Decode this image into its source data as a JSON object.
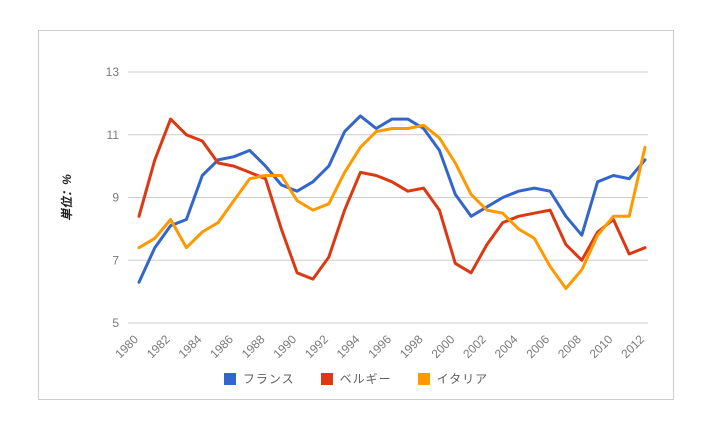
{
  "colors": {
    "background": "#ffffff",
    "border": "#cccccc",
    "grid": "#cccccc",
    "axis_text": "#7a7a7a",
    "series_blue": "#3366CC",
    "series_red": "#DC3912",
    "series_orange": "#FF9900"
  },
  "chart_data": {
    "type": "line",
    "title": "",
    "ylabel": "単位：%",
    "xlabel": "",
    "ylim": [
      5,
      13
    ],
    "yticks": [
      5,
      7,
      9,
      11,
      13
    ],
    "grid": true,
    "legend_position": "bottom",
    "x": [
      1980,
      1981,
      1982,
      1983,
      1984,
      1985,
      1986,
      1987,
      1988,
      1989,
      1990,
      1991,
      1992,
      1993,
      1994,
      1995,
      1996,
      1997,
      1998,
      1999,
      2000,
      2001,
      2002,
      2003,
      2004,
      2005,
      2006,
      2007,
      2008,
      2009,
      2010,
      2011,
      2012
    ],
    "x_tick_labels": [
      "1980",
      "1982",
      "1984",
      "1986",
      "1988",
      "1990",
      "1992",
      "1994",
      "1996",
      "1998",
      "2000",
      "2002",
      "2004",
      "2006",
      "2008",
      "2010",
      "2012"
    ],
    "series": [
      {
        "name": "フランス",
        "color": "#3366CC",
        "values": [
          6.3,
          7.4,
          8.1,
          8.3,
          9.7,
          10.2,
          10.3,
          10.5,
          10.0,
          9.4,
          9.2,
          9.5,
          10.0,
          11.1,
          11.6,
          11.2,
          11.5,
          11.5,
          11.2,
          10.5,
          9.1,
          8.4,
          8.7,
          9.0,
          9.2,
          9.3,
          9.2,
          8.4,
          7.8,
          9.5,
          9.7,
          9.6,
          10.2
        ]
      },
      {
        "name": "ベルギー",
        "color": "#DC3912",
        "values": [
          8.4,
          10.2,
          11.5,
          11.0,
          10.8,
          10.1,
          10.0,
          9.8,
          9.6,
          8.0,
          6.6,
          6.4,
          7.1,
          8.6,
          9.8,
          9.7,
          9.5,
          9.2,
          9.3,
          8.6,
          6.9,
          6.6,
          7.5,
          8.2,
          8.4,
          8.5,
          8.6,
          7.5,
          7.0,
          7.9,
          8.3,
          7.2,
          7.4
        ]
      },
      {
        "name": "イタリア",
        "color": "#FF9900",
        "values": [
          7.4,
          7.7,
          8.3,
          7.4,
          7.9,
          8.2,
          8.9,
          9.6,
          9.7,
          9.7,
          8.9,
          8.6,
          8.8,
          9.8,
          10.6,
          11.1,
          11.2,
          11.2,
          11.3,
          10.9,
          10.1,
          9.1,
          8.6,
          8.5,
          8.0,
          7.7,
          6.8,
          6.1,
          6.7,
          7.8,
          8.4,
          8.4,
          10.6
        ]
      }
    ]
  }
}
